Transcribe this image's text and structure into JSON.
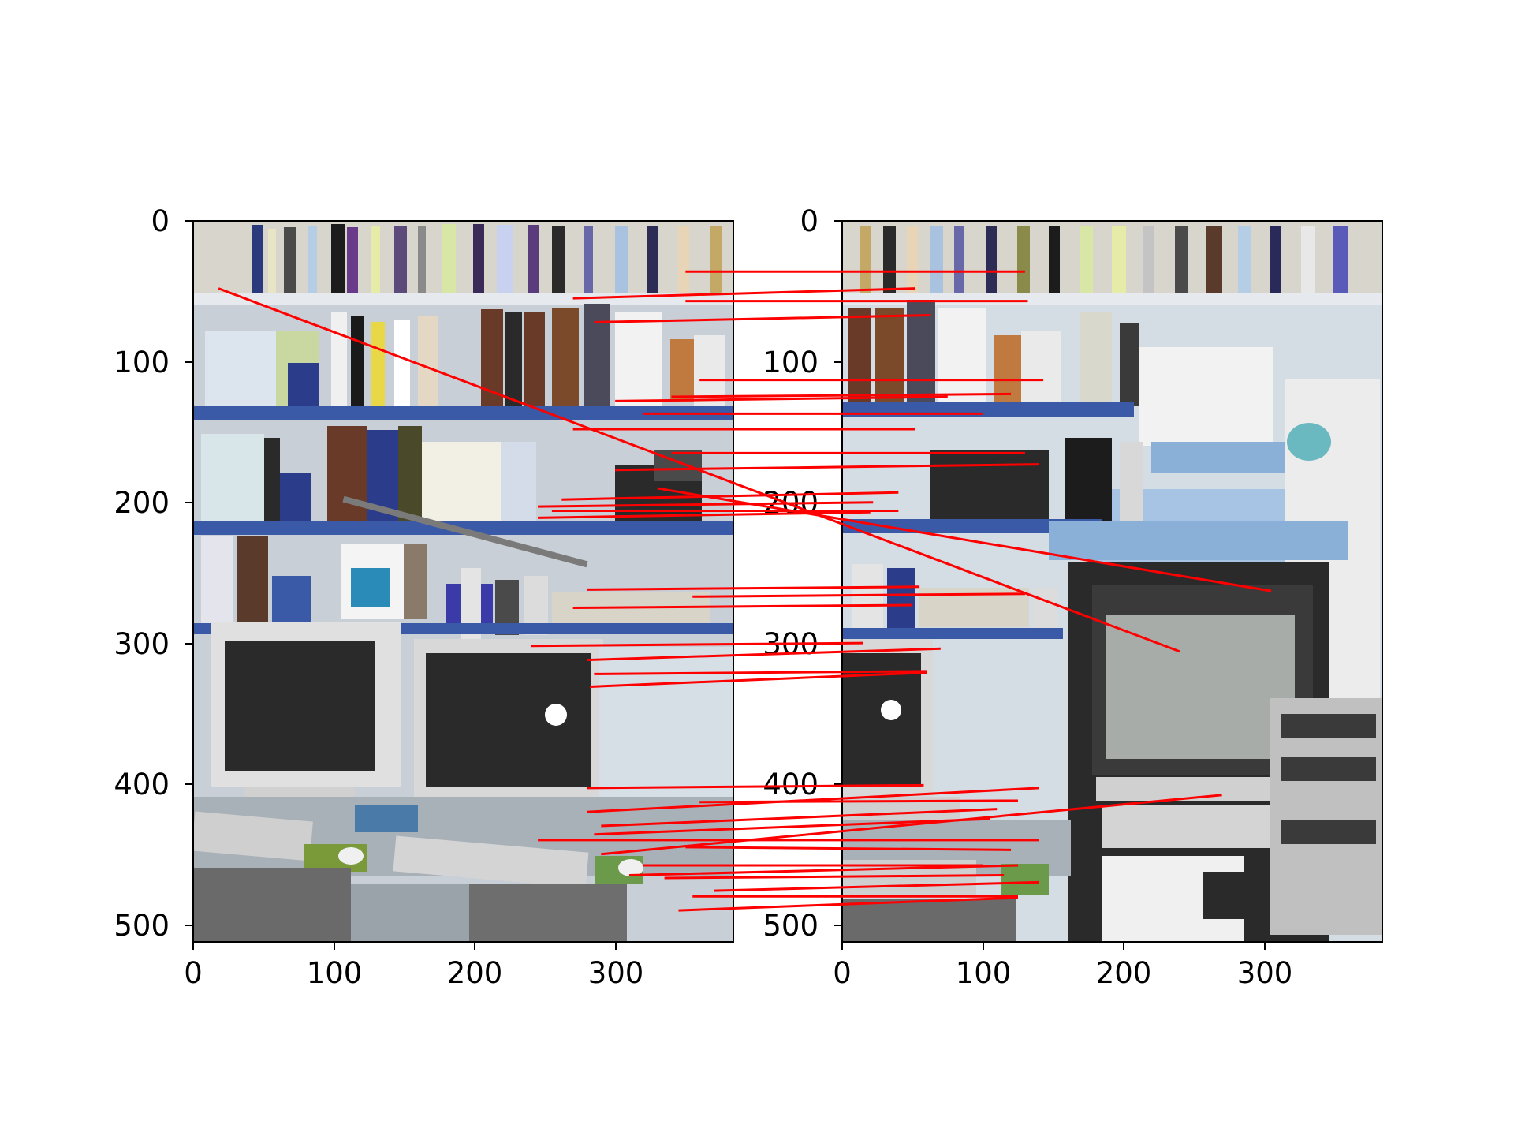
{
  "figure": {
    "panels": [
      {
        "id": "left",
        "image_description_tags": [
          "bookshelves",
          "crt-monitors",
          "keyboards",
          "desk",
          "chairs"
        ],
        "x_ticks": [
          "0",
          "100",
          "200",
          "300"
        ],
        "y_ticks": [
          "0",
          "100",
          "200",
          "300",
          "400",
          "500"
        ],
        "xlim": [
          0,
          384
        ],
        "ylim": [
          512,
          0
        ]
      },
      {
        "id": "right",
        "image_description_tags": [
          "bookshelves",
          "crt-monitor",
          "equipment-rack",
          "tv-monitor",
          "whiteboard"
        ],
        "x_ticks": [
          "0",
          "100",
          "200",
          "300"
        ],
        "y_ticks": [
          "0",
          "100",
          "200",
          "300",
          "400",
          "500"
        ],
        "xlim": [
          0,
          384
        ],
        "ylim": [
          512,
          0
        ]
      }
    ],
    "match_color": "#ff0000"
  },
  "chart_data": {
    "type": "scatter",
    "description_kind": "feature-match correspondences between two images",
    "matches": [
      {
        "left": [
          350,
          36
        ],
        "right": [
          130,
          36
        ]
      },
      {
        "left": [
          270,
          55
        ],
        "right": [
          52,
          48
        ]
      },
      {
        "left": [
          350,
          57
        ],
        "right": [
          132,
          57
        ]
      },
      {
        "left": [
          285,
          72
        ],
        "right": [
          63,
          67
        ]
      },
      {
        "left": [
          18,
          48
        ],
        "right": [
          240,
          306
        ]
      },
      {
        "left": [
          360,
          113
        ],
        "right": [
          143,
          113
        ]
      },
      {
        "left": [
          340,
          125
        ],
        "right": [
          120,
          123
        ]
      },
      {
        "left": [
          300,
          128
        ],
        "right": [
          75,
          125
        ]
      },
      {
        "left": [
          320,
          137
        ],
        "right": [
          100,
          137
        ]
      },
      {
        "left": [
          270,
          148
        ],
        "right": [
          52,
          148
        ]
      },
      {
        "left": [
          340,
          165
        ],
        "right": [
          130,
          165
        ]
      },
      {
        "left": [
          300,
          177
        ],
        "right": [
          140,
          173
        ]
      },
      {
        "left": [
          330,
          190
        ],
        "right": [
          305,
          263
        ]
      },
      {
        "left": [
          262,
          198
        ],
        "right": [
          40,
          193
        ]
      },
      {
        "left": [
          245,
          203
        ],
        "right": [
          22,
          200
        ]
      },
      {
        "left": [
          255,
          206
        ],
        "right": [
          40,
          206
        ]
      },
      {
        "left": [
          245,
          211
        ],
        "right": [
          20,
          207
        ]
      },
      {
        "left": [
          280,
          262
        ],
        "right": [
          55,
          260
        ]
      },
      {
        "left": [
          355,
          267
        ],
        "right": [
          130,
          265
        ]
      },
      {
        "left": [
          270,
          275
        ],
        "right": [
          50,
          273
        ]
      },
      {
        "left": [
          240,
          302
        ],
        "right": [
          15,
          300
        ]
      },
      {
        "left": [
          280,
          312
        ],
        "right": [
          70,
          304
        ]
      },
      {
        "left": [
          285,
          322
        ],
        "right": [
          60,
          320
        ]
      },
      {
        "left": [
          282,
          331
        ],
        "right": [
          60,
          321
        ]
      },
      {
        "left": [
          280,
          403
        ],
        "right": [
          58,
          401
        ]
      },
      {
        "left": [
          280,
          420
        ],
        "right": [
          140,
          403
        ]
      },
      {
        "left": [
          360,
          413
        ],
        "right": [
          125,
          412
        ]
      },
      {
        "left": [
          290,
          430
        ],
        "right": [
          110,
          418
        ]
      },
      {
        "left": [
          285,
          436
        ],
        "right": [
          105,
          425
        ]
      },
      {
        "left": [
          290,
          450
        ],
        "right": [
          270,
          408
        ]
      },
      {
        "left": [
          245,
          440
        ],
        "right": [
          140,
          440
        ]
      },
      {
        "left": [
          350,
          445
        ],
        "right": [
          120,
          447
        ]
      },
      {
        "left": [
          320,
          458
        ],
        "right": [
          100,
          458
        ]
      },
      {
        "left": [
          310,
          465
        ],
        "right": [
          125,
          458
        ]
      },
      {
        "left": [
          335,
          467
        ],
        "right": [
          115,
          465
        ]
      },
      {
        "left": [
          370,
          476
        ],
        "right": [
          140,
          470
        ]
      },
      {
        "left": [
          355,
          480
        ],
        "right": [
          125,
          480
        ]
      },
      {
        "left": [
          345,
          490
        ],
        "right": [
          125,
          481
        ]
      }
    ]
  }
}
